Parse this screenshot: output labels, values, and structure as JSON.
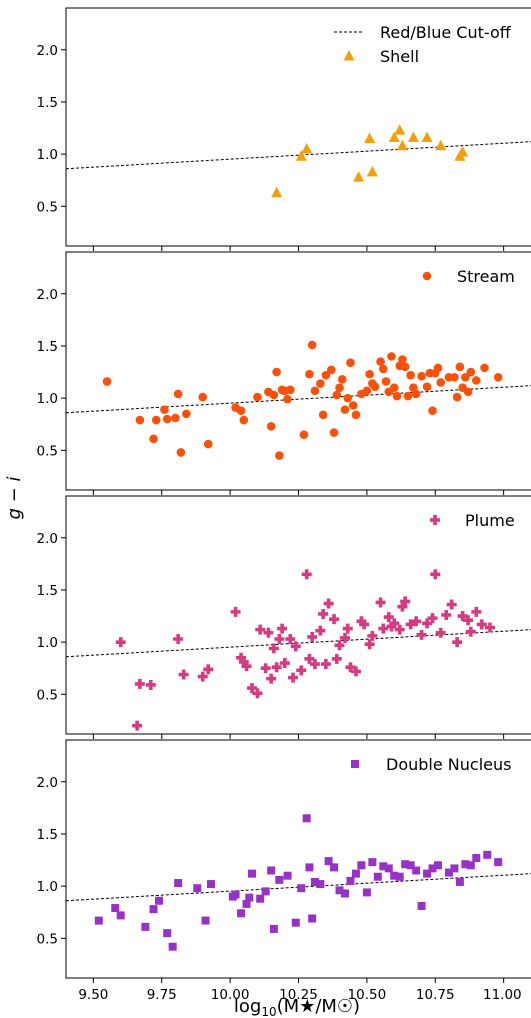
{
  "figure": {
    "ylabel": "g − i",
    "xlabel": "log",
    "xlabel_sub": "10",
    "xlabel_rest": "(M★/M☉)",
    "x_ticks": [
      "9.50",
      "9.75",
      "10.00",
      "10.25",
      "10.50",
      "10.75",
      "11.00"
    ],
    "y_ticks": [
      "0.5",
      "1.0",
      "1.5",
      "2.0"
    ],
    "cutoff_label": "Red/Blue Cut-off"
  },
  "chart_data": [
    {
      "type": "scatter",
      "series": [
        {
          "name": "Shell",
          "marker": "triangle",
          "color": "#f5a00a",
          "x": [
            10.17,
            10.26,
            10.28,
            10.47,
            10.51,
            10.52,
            10.6,
            10.62,
            10.63,
            10.67,
            10.72,
            10.77,
            10.84,
            10.85
          ],
          "y": [
            0.63,
            0.98,
            1.05,
            0.78,
            1.15,
            0.83,
            1.16,
            1.23,
            1.08,
            1.16,
            1.16,
            1.08,
            0.98,
            1.02
          ]
        }
      ],
      "cutoff": {
        "x": [
          9.4,
          11.1
        ],
        "y": [
          0.86,
          1.12
        ]
      },
      "xlim": [
        9.4,
        11.1
      ],
      "ylim": [
        0.12,
        2.4
      ],
      "legend_position": "top-right",
      "show_cutoff_legend": true
    },
    {
      "type": "scatter",
      "series": [
        {
          "name": "Stream",
          "marker": "circle",
          "color": "#fa5007",
          "x": [
            9.55,
            9.67,
            9.72,
            9.73,
            9.76,
            9.77,
            9.8,
            9.81,
            9.82,
            9.84,
            9.9,
            9.92,
            10.02,
            10.04,
            10.05,
            10.1,
            10.14,
            10.15,
            10.16,
            10.17,
            10.18,
            10.19,
            10.2,
            10.21,
            10.22,
            10.27,
            10.29,
            10.3,
            10.31,
            10.33,
            10.34,
            10.35,
            10.37,
            10.38,
            10.39,
            10.4,
            10.41,
            10.42,
            10.43,
            10.44,
            10.45,
            10.46,
            10.48,
            10.5,
            10.51,
            10.52,
            10.53,
            10.55,
            10.56,
            10.57,
            10.58,
            10.59,
            10.6,
            10.61,
            10.62,
            10.63,
            10.64,
            10.65,
            10.66,
            10.67,
            10.68,
            10.7,
            10.72,
            10.73,
            10.74,
            10.75,
            10.76,
            10.77,
            10.8,
            10.82,
            10.83,
            10.84,
            10.85,
            10.86,
            10.87,
            10.88,
            10.9,
            10.93,
            10.98
          ],
          "y": [
            1.16,
            0.79,
            0.61,
            0.79,
            0.89,
            0.8,
            0.81,
            1.04,
            0.48,
            0.85,
            1.01,
            0.56,
            0.91,
            0.88,
            0.79,
            1.01,
            1.06,
            0.73,
            1.03,
            1.25,
            0.45,
            1.08,
            1.07,
            0.99,
            1.08,
            0.65,
            1.23,
            1.51,
            1.07,
            1.14,
            0.84,
            1.22,
            1.27,
            0.67,
            1.03,
            1.1,
            1.18,
            0.89,
            1.0,
            1.34,
            0.93,
            0.84,
            1.04,
            1.07,
            1.23,
            1.14,
            1.11,
            1.35,
            1.28,
            1.16,
            1.06,
            1.4,
            1.1,
            1.02,
            1.31,
            1.37,
            1.3,
            1.02,
            1.22,
            1.1,
            1.04,
            1.21,
            1.11,
            1.24,
            0.88,
            1.24,
            1.29,
            1.15,
            1.2,
            1.2,
            1.01,
            1.3,
            1.1,
            1.2,
            1.06,
            1.25,
            1.17,
            1.29,
            1.2
          ]
        }
      ],
      "cutoff": {
        "x": [
          9.4,
          11.1
        ],
        "y": [
          0.86,
          1.12
        ]
      },
      "xlim": [
        9.4,
        11.1
      ],
      "ylim": [
        0.12,
        2.4
      ],
      "legend_position": "top-right",
      "show_cutoff_legend": false
    },
    {
      "type": "scatter",
      "series": [
        {
          "name": "Plume",
          "marker": "plus",
          "color": "#d73a82",
          "x": [
            9.6,
            9.66,
            9.67,
            9.71,
            9.81,
            9.83,
            9.9,
            9.92,
            10.02,
            10.04,
            10.05,
            10.06,
            10.08,
            10.1,
            10.11,
            10.13,
            10.14,
            10.15,
            10.16,
            10.17,
            10.18,
            10.19,
            10.2,
            10.22,
            10.23,
            10.24,
            10.26,
            10.28,
            10.29,
            10.3,
            10.31,
            10.33,
            10.34,
            10.35,
            10.36,
            10.38,
            10.39,
            10.4,
            10.42,
            10.43,
            10.44,
            10.46,
            10.48,
            10.49,
            10.51,
            10.52,
            10.55,
            10.56,
            10.58,
            10.59,
            10.6,
            10.62,
            10.63,
            10.64,
            10.66,
            10.68,
            10.7,
            10.72,
            10.74,
            10.75,
            10.77,
            10.79,
            10.81,
            10.83,
            10.85,
            10.87,
            10.88,
            10.9,
            10.92,
            10.95
          ],
          "y": [
            1.0,
            0.2,
            0.6,
            0.59,
            1.03,
            0.69,
            0.67,
            0.74,
            1.29,
            0.85,
            0.81,
            0.77,
            0.56,
            0.51,
            1.12,
            0.75,
            1.09,
            0.65,
            0.94,
            0.76,
            1.03,
            1.13,
            0.8,
            1.03,
            0.66,
            0.96,
            0.73,
            1.65,
            0.84,
            1.05,
            0.79,
            1.11,
            1.27,
            0.79,
            1.37,
            1.22,
            0.84,
            0.97,
            1.04,
            1.13,
            0.76,
            0.72,
            1.2,
            1.17,
            0.98,
            1.06,
            1.38,
            1.13,
            1.24,
            1.15,
            1.18,
            1.12,
            1.34,
            1.39,
            1.17,
            1.2,
            1.07,
            1.18,
            1.23,
            1.65,
            1.09,
            1.26,
            1.36,
            1.0,
            1.25,
            1.21,
            1.1,
            1.29,
            1.17,
            1.14
          ]
        }
      ],
      "cutoff": {
        "x": [
          9.4,
          11.1
        ],
        "y": [
          0.86,
          1.12
        ]
      },
      "xlim": [
        9.4,
        11.1
      ],
      "ylim": [
        0.12,
        2.4
      ],
      "legend_position": "top-right",
      "show_cutoff_legend": false
    },
    {
      "type": "scatter",
      "series": [
        {
          "name": "Double Nucleus",
          "marker": "square",
          "color": "#9632c8",
          "x": [
            9.52,
            9.58,
            9.6,
            9.69,
            9.72,
            9.74,
            9.77,
            9.79,
            9.81,
            9.88,
            9.91,
            9.93,
            10.01,
            10.02,
            10.04,
            10.06,
            10.07,
            10.08,
            10.11,
            10.13,
            10.15,
            10.16,
            10.18,
            10.21,
            10.24,
            10.26,
            10.28,
            10.29,
            10.3,
            10.31,
            10.33,
            10.36,
            10.38,
            10.4,
            10.42,
            10.44,
            10.46,
            10.48,
            10.5,
            10.52,
            10.54,
            10.56,
            10.58,
            10.6,
            10.62,
            10.64,
            10.66,
            10.68,
            10.7,
            10.72,
            10.74,
            10.76,
            10.8,
            10.82,
            10.84,
            10.86,
            10.88,
            10.9,
            10.94,
            10.98
          ],
          "y": [
            0.67,
            0.79,
            0.72,
            0.61,
            0.78,
            0.86,
            0.55,
            0.42,
            1.03,
            0.98,
            0.67,
            1.02,
            0.9,
            0.92,
            0.74,
            0.83,
            0.89,
            1.12,
            0.88,
            0.95,
            1.15,
            0.59,
            1.06,
            1.1,
            0.65,
            0.98,
            1.65,
            1.18,
            0.69,
            1.04,
            1.02,
            1.24,
            1.18,
            0.96,
            0.93,
            1.05,
            1.12,
            1.2,
            0.94,
            1.23,
            1.09,
            1.19,
            1.17,
            1.1,
            1.09,
            1.21,
            1.2,
            1.15,
            0.81,
            1.12,
            1.17,
            1.2,
            1.13,
            1.17,
            1.04,
            1.21,
            1.2,
            1.27,
            1.3,
            1.23
          ]
        }
      ],
      "cutoff": {
        "x": [
          9.4,
          11.1
        ],
        "y": [
          0.86,
          1.12
        ]
      },
      "xlim": [
        9.4,
        11.1
      ],
      "ylim": [
        0.12,
        2.4
      ],
      "legend_position": "top-right",
      "show_cutoff_legend": false
    }
  ]
}
